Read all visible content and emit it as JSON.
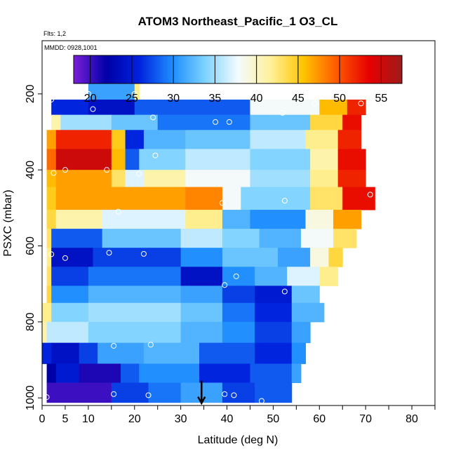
{
  "chart_data": {
    "type": "heatmap",
    "title": "ATOM3 Northeast_Pacific_1 O3_CL",
    "annotations": {
      "flights": "Flts: 1,2",
      "dates": "MMDD: 0928,1001"
    },
    "xlabel": "Latitude (deg N)",
    "ylabel": "PSXC (mbar)",
    "xlim": [
      0,
      85
    ],
    "ylim": [
      1020,
      60
    ],
    "x_ticks": [
      0,
      5,
      10,
      20,
      30,
      40,
      50,
      60,
      70,
      80
    ],
    "x_tick_marks": [
      0,
      5,
      10,
      15,
      20,
      25,
      30,
      35,
      40,
      45,
      50,
      55,
      60,
      65,
      70,
      75,
      80,
      85
    ],
    "y_ticks": [
      200,
      400,
      600,
      800,
      1000
    ],
    "colorbar": {
      "min": 18,
      "max": 57.5,
      "ticks": [
        20,
        25,
        30,
        35,
        40,
        45,
        50,
        55
      ],
      "colors": [
        "#7a1fd8",
        "#0000a8",
        "#0022dd",
        "#1e8cff",
        "#7dd3ff",
        "#f3fbff",
        "#fff199",
        "#ffc400",
        "#ff5a00",
        "#e60000",
        "#9e1b1b"
      ]
    },
    "rows": [
      {
        "p0": 160,
        "p1": 215,
        "segments": [
          [
            10,
            20,
            31
          ],
          [
            20,
            21,
            42
          ]
        ]
      },
      {
        "p0": 215,
        "p1": 255,
        "segments": [
          [
            2,
            10,
            26
          ],
          [
            10,
            20,
            24
          ],
          [
            20,
            45,
            28
          ],
          [
            45,
            60,
            38
          ],
          [
            60,
            66,
            46
          ],
          [
            66,
            70,
            52
          ]
        ]
      },
      {
        "p0": 255,
        "p1": 295,
        "segments": [
          [
            2,
            4,
            41
          ],
          [
            4,
            15,
            35
          ],
          [
            15,
            25,
            33
          ],
          [
            25,
            45,
            29
          ],
          [
            45,
            58,
            33
          ],
          [
            58,
            65,
            44
          ],
          [
            65,
            69,
            53
          ]
        ]
      },
      {
        "p0": 295,
        "p1": 345,
        "segments": [
          [
            1,
            3,
            47
          ],
          [
            3,
            15,
            52
          ],
          [
            15,
            18,
            45
          ],
          [
            18,
            22,
            26
          ],
          [
            22,
            31,
            32
          ],
          [
            31,
            45,
            33
          ],
          [
            45,
            57,
            36
          ],
          [
            57,
            64,
            42
          ],
          [
            64,
            69,
            52
          ]
        ]
      },
      {
        "p0": 345,
        "p1": 400,
        "segments": [
          [
            1,
            3,
            49
          ],
          [
            3,
            15,
            55
          ],
          [
            15,
            18,
            46
          ],
          [
            18,
            21,
            28
          ],
          [
            21,
            31,
            34
          ],
          [
            31,
            45,
            36
          ],
          [
            45,
            58,
            34
          ],
          [
            58,
            64,
            41
          ],
          [
            64,
            70,
            53
          ]
        ]
      },
      {
        "p0": 400,
        "p1": 445,
        "segments": [
          [
            1,
            3,
            46
          ],
          [
            3,
            15,
            47
          ],
          [
            15,
            18,
            43
          ],
          [
            18,
            22,
            37
          ],
          [
            22,
            31,
            41
          ],
          [
            31,
            45,
            38
          ],
          [
            45,
            58,
            35
          ],
          [
            58,
            64,
            42
          ],
          [
            64,
            70,
            52
          ]
        ]
      },
      {
        "p0": 445,
        "p1": 505,
        "segments": [
          [
            1,
            3,
            45
          ],
          [
            3,
            31,
            47
          ],
          [
            31,
            39,
            48
          ],
          [
            39,
            43,
            38
          ],
          [
            43,
            58,
            34
          ],
          [
            58,
            65,
            43
          ],
          [
            65,
            72,
            53
          ]
        ]
      },
      {
        "p0": 505,
        "p1": 555,
        "segments": [
          [
            1,
            3,
            44
          ],
          [
            3,
            13,
            41
          ],
          [
            13,
            31,
            37
          ],
          [
            31,
            39,
            42
          ],
          [
            39,
            45,
            32
          ],
          [
            45,
            57,
            30
          ],
          [
            57,
            63,
            39
          ],
          [
            63,
            69,
            47
          ]
        ]
      },
      {
        "p0": 555,
        "p1": 605,
        "segments": [
          [
            1,
            2,
            43
          ],
          [
            2,
            13,
            28
          ],
          [
            13,
            30,
            33
          ],
          [
            30,
            39,
            36
          ],
          [
            39,
            47,
            34
          ],
          [
            47,
            56,
            32
          ],
          [
            56,
            63,
            38
          ],
          [
            63,
            68,
            43
          ]
        ]
      },
      {
        "p0": 605,
        "p1": 655,
        "segments": [
          [
            1,
            2,
            42
          ],
          [
            2,
            11,
            24
          ],
          [
            11,
            30,
            27
          ],
          [
            30,
            39,
            30
          ],
          [
            39,
            51,
            33
          ],
          [
            51,
            58,
            31
          ],
          [
            58,
            62,
            39
          ],
          [
            62,
            65,
            44
          ]
        ]
      },
      {
        "p0": 655,
        "p1": 705,
        "segments": [
          [
            1,
            2,
            43
          ],
          [
            2,
            10,
            27
          ],
          [
            10,
            30,
            29
          ],
          [
            30,
            39,
            24
          ],
          [
            39,
            46,
            30
          ],
          [
            46,
            53,
            32
          ],
          [
            53,
            60,
            37
          ],
          [
            60,
            64,
            42
          ]
        ]
      },
      {
        "p0": 705,
        "p1": 750,
        "segments": [
          [
            1,
            2,
            44
          ],
          [
            2,
            10,
            30
          ],
          [
            10,
            30,
            32
          ],
          [
            30,
            39,
            31
          ],
          [
            39,
            46,
            27
          ],
          [
            46,
            54,
            25
          ],
          [
            54,
            60,
            33
          ]
        ]
      },
      {
        "p0": 750,
        "p1": 800,
        "segments": [
          [
            0,
            2,
            42
          ],
          [
            2,
            10,
            34
          ],
          [
            10,
            30,
            35
          ],
          [
            30,
            39,
            33
          ],
          [
            39,
            46,
            29
          ],
          [
            46,
            54,
            26
          ],
          [
            54,
            61,
            32
          ]
        ]
      },
      {
        "p0": 800,
        "p1": 855,
        "segments": [
          [
            0,
            1,
            41
          ],
          [
            1,
            10,
            36
          ],
          [
            10,
            30,
            34
          ],
          [
            30,
            39,
            32
          ],
          [
            39,
            46,
            30
          ],
          [
            46,
            54,
            27
          ],
          [
            54,
            58,
            31
          ]
        ]
      },
      {
        "p0": 855,
        "p1": 910,
        "segments": [
          [
            0,
            2,
            26
          ],
          [
            2,
            8,
            24
          ],
          [
            8,
            12,
            27
          ],
          [
            12,
            22,
            31
          ],
          [
            22,
            34,
            32
          ],
          [
            34,
            46,
            28
          ],
          [
            46,
            54,
            26
          ],
          [
            54,
            57,
            30
          ]
        ]
      },
      {
        "p0": 910,
        "p1": 960,
        "segments": [
          [
            1,
            3,
            22
          ],
          [
            3,
            8,
            25
          ],
          [
            8,
            17,
            21
          ],
          [
            17,
            21,
            28
          ],
          [
            21,
            34,
            30
          ],
          [
            34,
            45,
            26
          ],
          [
            45,
            54,
            28
          ],
          [
            54,
            56,
            31
          ]
        ]
      },
      {
        "p0": 960,
        "p1": 1012,
        "segments": [
          [
            1,
            15,
            20
          ],
          [
            15,
            23,
            27
          ],
          [
            23,
            30,
            29
          ],
          [
            30,
            39,
            31
          ],
          [
            39,
            46,
            27
          ],
          [
            46,
            54,
            28
          ]
        ]
      }
    ],
    "points": [
      [
        10,
        200
      ],
      [
        20,
        200
      ],
      [
        11,
        240
      ],
      [
        2,
        215
      ],
      [
        59,
        225
      ],
      [
        69,
        225
      ],
      [
        52,
        250
      ],
      [
        24,
        262
      ],
      [
        37.5,
        274
      ],
      [
        40.5,
        274
      ],
      [
        24.5,
        362
      ],
      [
        2.5,
        408
      ],
      [
        5,
        400
      ],
      [
        14,
        400
      ],
      [
        21,
        410
      ],
      [
        16.5,
        510
      ],
      [
        39,
        487
      ],
      [
        52.5,
        481
      ],
      [
        71,
        465
      ],
      [
        2,
        622
      ],
      [
        5,
        632
      ],
      [
        14.5,
        618
      ],
      [
        22,
        621
      ],
      [
        42,
        680
      ],
      [
        39.5,
        703
      ],
      [
        52.5,
        720
      ],
      [
        15.5,
        863
      ],
      [
        23.5,
        860
      ],
      [
        1,
        998
      ],
      [
        15.5,
        990
      ],
      [
        23,
        993
      ],
      [
        39.5,
        990
      ],
      [
        41.5,
        993
      ],
      [
        47.5,
        1008
      ]
    ],
    "marker": {
      "x": 34.5,
      "p_top": 955,
      "p_bottom": 1012
    }
  }
}
